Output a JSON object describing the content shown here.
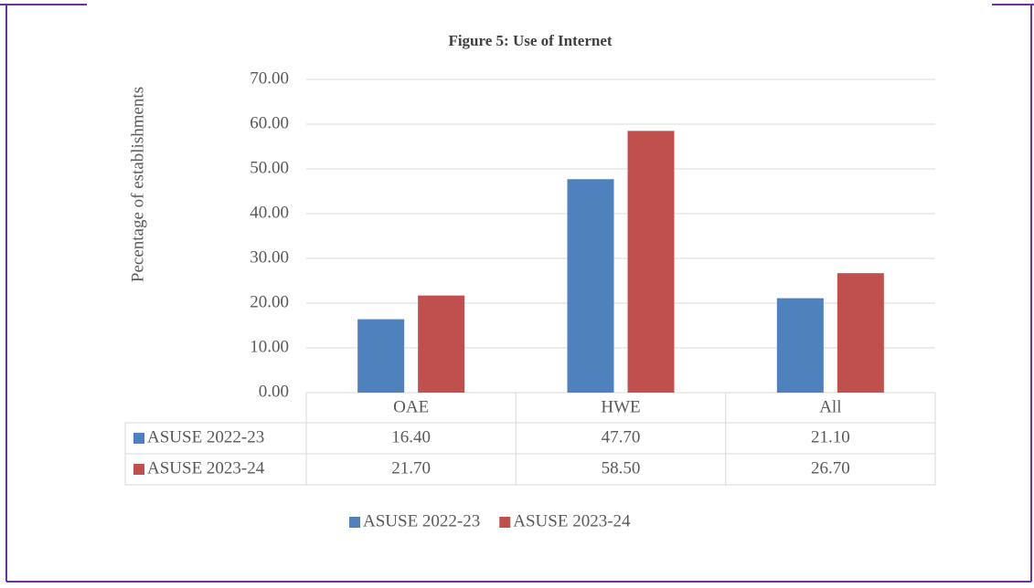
{
  "chart_data": {
    "type": "bar",
    "title": "Figure 5: Use of Internet",
    "y_label": "Pecentage of establishments",
    "categories": [
      "OAE",
      "HWE",
      "All"
    ],
    "series": [
      {
        "name": "ASUSE 2022-23",
        "color": "#4f81bd",
        "values": [
          16.4,
          47.7,
          21.1
        ],
        "value_labels": [
          "16.40",
          "47.70",
          "21.10"
        ]
      },
      {
        "name": "ASUSE 2023-24",
        "color": "#c0504d",
        "values": [
          21.7,
          58.5,
          26.7
        ],
        "value_labels": [
          "21.70",
          "58.50",
          "26.70"
        ]
      }
    ],
    "ylim": [
      0,
      70
    ],
    "yticks": [
      {
        "value": 0,
        "label": "0.00"
      },
      {
        "value": 10,
        "label": "10.00"
      },
      {
        "value": 20,
        "label": "20.00"
      },
      {
        "value": 30,
        "label": "30.00"
      },
      {
        "value": 40,
        "label": "40.00"
      },
      {
        "value": 50,
        "label": "50.00"
      },
      {
        "value": 60,
        "label": "60.00"
      },
      {
        "value": 70,
        "label": "70.00"
      }
    ],
    "grid": true,
    "legend": "bottom"
  }
}
